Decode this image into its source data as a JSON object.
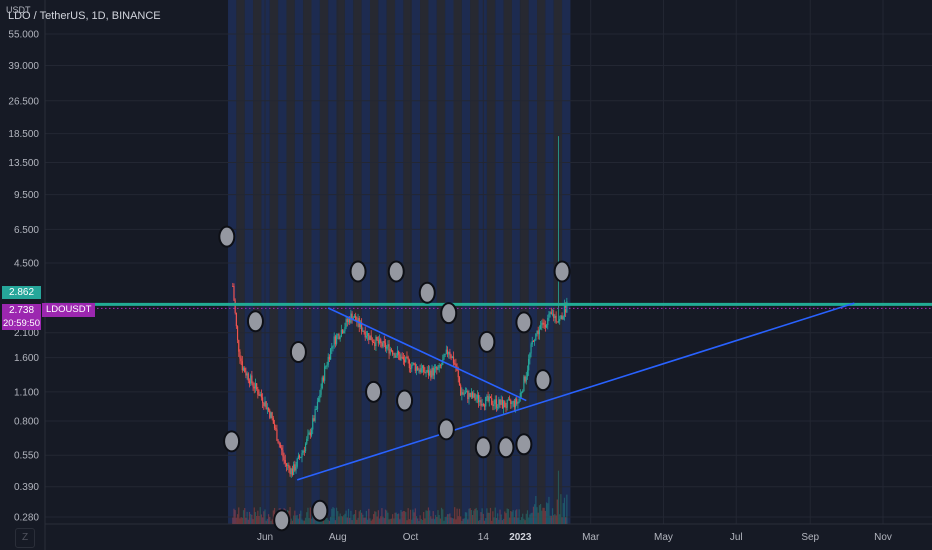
{
  "header": {
    "title": "LDO / TetherUS, 1D, BINANCE"
  },
  "y_axis": {
    "unit": "USDT"
  },
  "price_tags": {
    "last_price": "2.862",
    "current_price": "2.738",
    "countdown": "20:59:50",
    "symbol": "LDOUSDT"
  },
  "colors": {
    "background": "#161a25",
    "bull": "#26a69a",
    "bear": "#ef5350",
    "trendline": "#2962ff",
    "hline": "#22ab94",
    "dotted": "#9c27b0",
    "stripe_blue": "#1f2f58",
    "stripe_grey": "#2a2d35",
    "circle_fill": "#9598a1"
  },
  "chart_data": {
    "type": "candlestick",
    "title": "LDO / TetherUS, 1D, BINANCE",
    "ylabel": "USDT",
    "y_scale": "log",
    "ylim": [
      0.25,
      75
    ],
    "y_ticks": [
      55.0,
      39.0,
      26.5,
      18.5,
      13.5,
      9.5,
      6.5,
      4.5,
      2.1,
      1.6,
      1.1,
      0.8,
      0.55,
      0.39,
      0.28
    ],
    "y_tick_labels": [
      "55.000",
      "39.000",
      "26.500",
      "18.500",
      "13.500",
      "9.500",
      "6.500",
      "4.500",
      "2.100",
      "1.600",
      "1.100",
      "0.800",
      "0.550",
      "0.390",
      "0.280"
    ],
    "x_tick_labels": [
      "Jun",
      "Aug",
      "Oct",
      "14",
      "2023",
      "Mar",
      "May",
      "Jul",
      "Sep",
      "Nov"
    ],
    "x_tick_dates": [
      "2022-06-01",
      "2022-08-01",
      "2022-10-01",
      "2022-12-01",
      "2023-01-01",
      "2023-03-01",
      "2023-05-01",
      "2023-07-01",
      "2023-09-01",
      "2023-11-01"
    ],
    "grid": true,
    "price_path": [
      [
        "2022-05-05",
        3.5
      ],
      [
        "2022-05-09",
        1.9
      ],
      [
        "2022-05-13",
        1.45
      ],
      [
        "2022-05-18",
        1.3
      ],
      [
        "2022-05-24",
        1.15
      ],
      [
        "2022-05-31",
        1.0
      ],
      [
        "2022-06-06",
        0.85
      ],
      [
        "2022-06-12",
        0.65
      ],
      [
        "2022-06-18",
        0.5
      ],
      [
        "2022-06-24",
        0.46
      ],
      [
        "2022-07-01",
        0.55
      ],
      [
        "2022-07-08",
        0.68
      ],
      [
        "2022-07-15",
        0.95
      ],
      [
        "2022-07-21",
        1.4
      ],
      [
        "2022-07-28",
        1.9
      ],
      [
        "2022-08-05",
        2.2
      ],
      [
        "2022-08-13",
        2.55
      ],
      [
        "2022-08-20",
        2.25
      ],
      [
        "2022-08-28",
        2.0
      ],
      [
        "2022-09-05",
        1.85
      ],
      [
        "2022-09-15",
        1.75
      ],
      [
        "2022-09-25",
        1.55
      ],
      [
        "2022-10-05",
        1.45
      ],
      [
        "2022-10-15",
        1.35
      ],
      [
        "2022-10-25",
        1.4
      ],
      [
        "2022-11-02",
        1.75
      ],
      [
        "2022-11-08",
        1.45
      ],
      [
        "2022-11-12",
        1.1
      ],
      [
        "2022-11-20",
        1.05
      ],
      [
        "2022-11-30",
        1.0
      ],
      [
        "2022-12-10",
        0.98
      ],
      [
        "2022-12-20",
        0.95
      ],
      [
        "2022-12-30",
        0.98
      ],
      [
        "2023-01-06",
        1.35
      ],
      [
        "2023-01-12",
        2.0
      ],
      [
        "2023-01-20",
        2.3
      ],
      [
        "2023-01-28",
        2.55
      ],
      [
        "2023-02-03",
        2.4
      ],
      [
        "2023-02-09",
        2.862
      ]
    ],
    "spike": {
      "date": "2023-02-02",
      "high": 18.0
    },
    "horizontal_line": 2.862,
    "dotted_line": 2.738,
    "trendlines": [
      {
        "from": [
          "2022-07-24",
          2.75
        ],
        "to": [
          "2023-01-06",
          1.0
        ]
      },
      {
        "from": [
          "2022-06-28",
          0.42
        ],
        "to": [
          "2023-10-08",
          2.9
        ]
      }
    ],
    "markers": [
      [
        "2022-04-30",
        6.0
      ],
      [
        "2022-05-24",
        2.38
      ],
      [
        "2022-06-29",
        1.7
      ],
      [
        "2022-08-18",
        4.1
      ],
      [
        "2022-09-19",
        4.1
      ],
      [
        "2022-10-15",
        3.25
      ],
      [
        "2022-11-02",
        2.6
      ],
      [
        "2022-12-04",
        1.9
      ],
      [
        "2023-01-04",
        2.35
      ],
      [
        "2023-02-05",
        4.1
      ],
      [
        "2022-05-04",
        0.64
      ],
      [
        "2022-06-15",
        0.27
      ],
      [
        "2022-07-17",
        0.3
      ],
      [
        "2022-08-31",
        1.1
      ],
      [
        "2022-09-26",
        1.0
      ],
      [
        "2022-10-31",
        0.73
      ],
      [
        "2022-12-01",
        0.6
      ],
      [
        "2022-12-20",
        0.6
      ],
      [
        "2023-01-04",
        0.62
      ],
      [
        "2023-01-20",
        1.25
      ]
    ]
  }
}
